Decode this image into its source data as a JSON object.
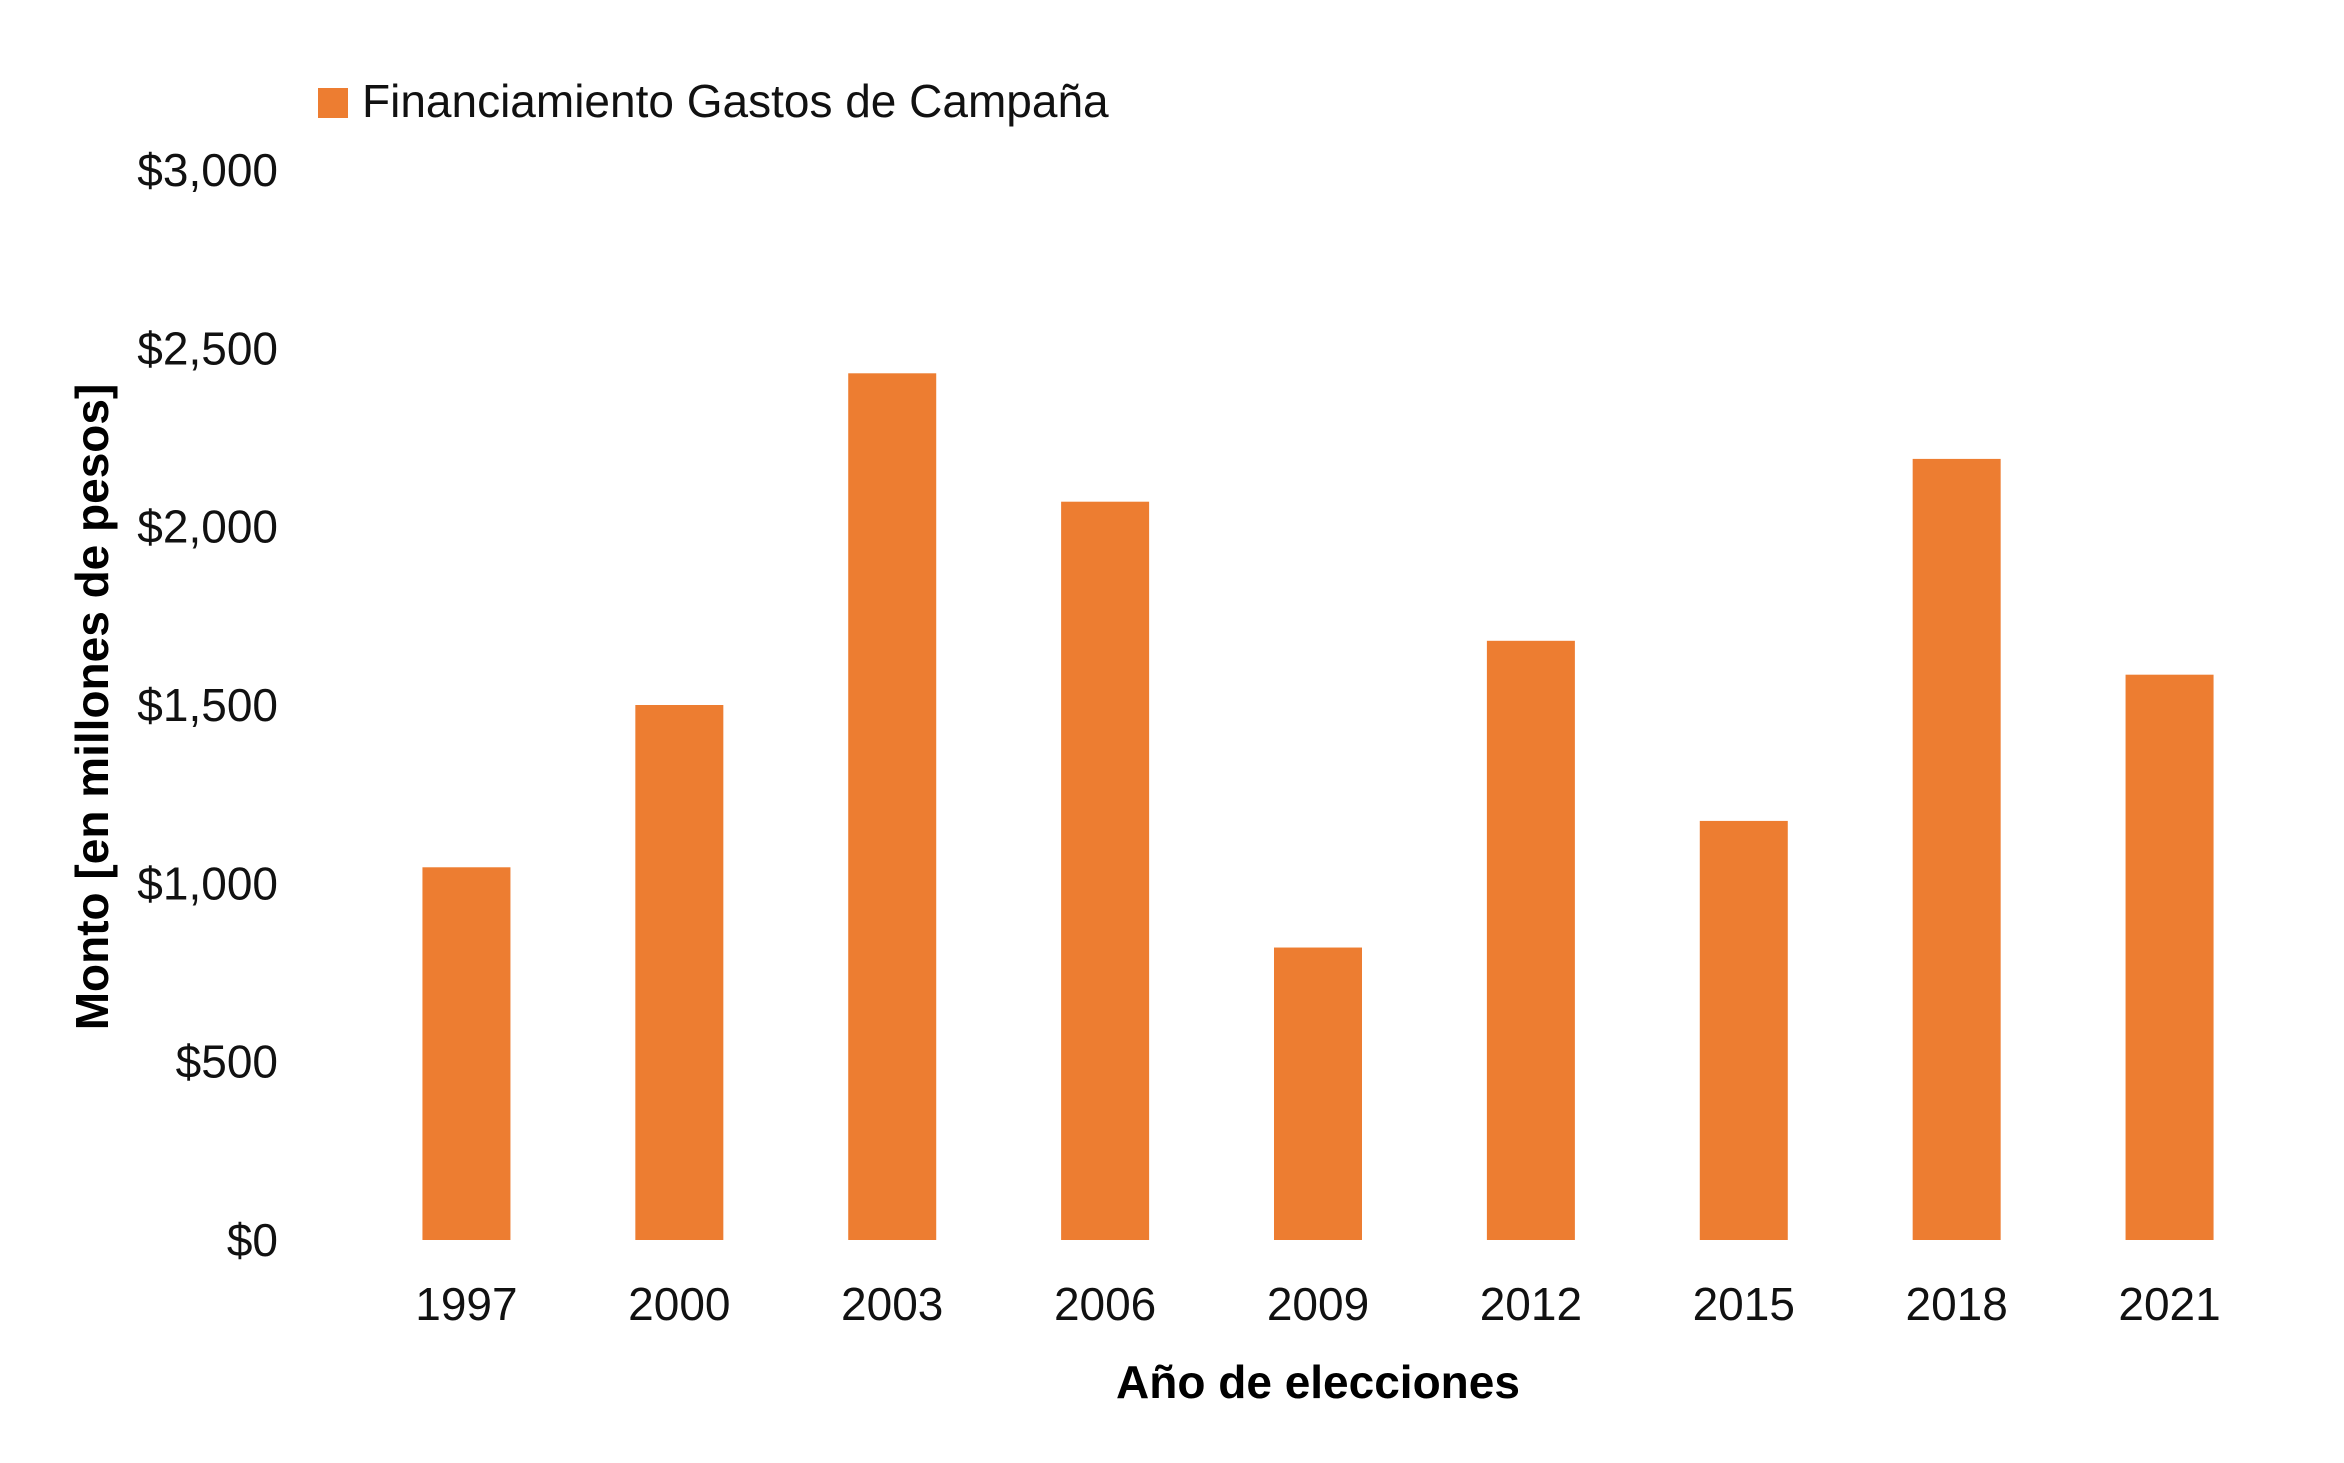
{
  "chart_data": {
    "type": "bar",
    "categories": [
      "1997",
      "2000",
      "2003",
      "2006",
      "2009",
      "2012",
      "2015",
      "2018",
      "2021"
    ],
    "series": [
      {
        "name": "Financiamiento Gastos de Campaña",
        "values": [
          1045,
          1500,
          2430,
          2070,
          820,
          1680,
          1175,
          2190,
          1585
        ],
        "color": "#ED7D31"
      }
    ],
    "ylim": [
      0,
      3000
    ],
    "yticks": [
      0,
      500,
      1000,
      1500,
      2000,
      2500,
      3000
    ],
    "ytick_labels": [
      "$0",
      "$500",
      "$1,000",
      "$1,500",
      "$2,000",
      "$2,500",
      "$3,000"
    ],
    "xlabel": "Año de elecciones",
    "ylabel": "Monto [en millones de pesos]",
    "legend": {
      "position": "top-left",
      "labels": [
        "Financiamiento Gastos de Campaña"
      ]
    },
    "grid": false
  }
}
